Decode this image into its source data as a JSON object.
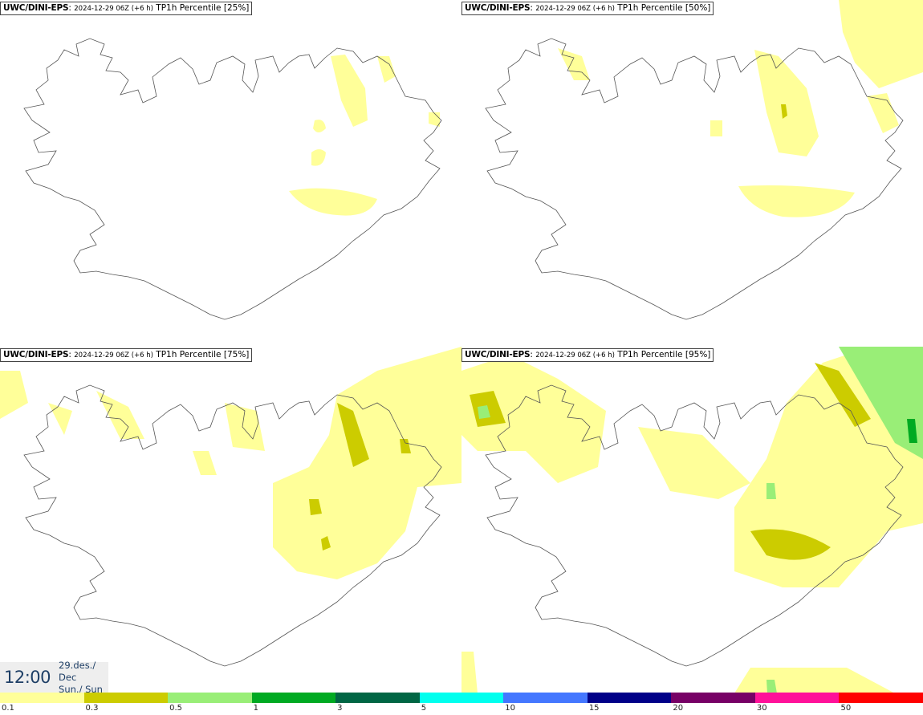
{
  "panels": [
    {
      "source": "UWC/DINI-EPS",
      "run": "2024-12-29 06Z (+6 h)",
      "product": "TP1h Percentile [25%]"
    },
    {
      "source": "UWC/DINI-EPS",
      "run": "2024-12-29 06Z (+6 h)",
      "product": "TP1h Percentile [50%]"
    },
    {
      "source": "UWC/DINI-EPS",
      "run": "2024-12-29 06Z (+6 h)",
      "product": "TP1h Percentile [75%]"
    },
    {
      "source": "UWC/DINI-EPS",
      "run": "2024-12-29 06Z (+6 h)",
      "product": "TP1h Percentile [95%]"
    }
  ],
  "valid_time": {
    "time": "12:00",
    "date": "29.des./ Dec",
    "day": "Sun./ Sun"
  },
  "legend": {
    "colors": [
      "#ffff99",
      "#cccc00",
      "#99ee77",
      "#00aa22",
      "#006644",
      "#00ffee",
      "#4477ff",
      "#000088",
      "#770066",
      "#ff1199",
      "#ff0000"
    ],
    "labels": [
      "0.1",
      "0.3",
      "0.5",
      "1",
      "3",
      "5",
      "10",
      "15",
      "20",
      "30",
      "50"
    ]
  },
  "map_colors": {
    "outline": "#555555",
    "light_rain": "#ffff99",
    "moderate_rain": "#cccc00",
    "heavy_rain": "#99ee77",
    "very_heavy_rain": "#00aa22"
  }
}
